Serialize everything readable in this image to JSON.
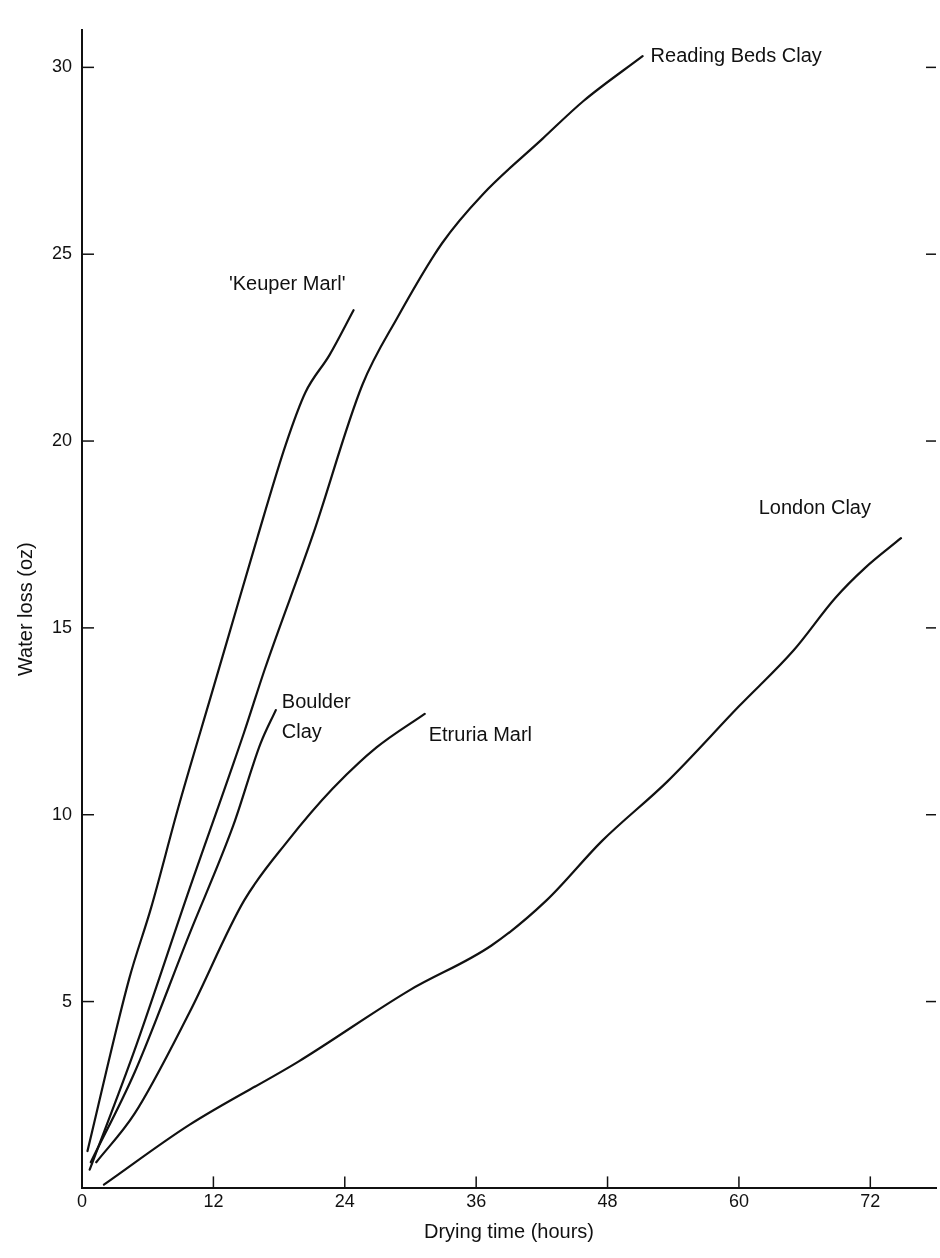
{
  "chart_data": {
    "type": "line",
    "xlabel": "Drying time (hours)",
    "ylabel": "Water loss (oz)",
    "xlim": [
      0,
      78
    ],
    "xticks": [
      0,
      12,
      24,
      36,
      48,
      60,
      72
    ],
    "ylim": [
      0,
      31
    ],
    "yticks": [
      {
        "value": 5,
        "label": "5"
      },
      {
        "value": 10,
        "label": "10"
      },
      {
        "value": 15,
        "label": "15"
      },
      {
        "value": 20,
        "label": "20"
      },
      {
        "value": 25,
        "label": "25"
      },
      {
        "value": 30,
        "label": "30"
      }
    ],
    "tick_labels": "xy",
    "legend": false,
    "grid": false,
    "marker": "none",
    "line_style": "solid",
    "series": [
      {
        "name": "'Keuper Marl'",
        "color": "#111111",
        "x": [
          0.5,
          4.3,
          6.3,
          8.8,
          11.8,
          13.4,
          16.0,
          18.6,
          20.4,
          22.6,
          24.8
        ],
        "values": [
          1.0,
          5.6,
          7.5,
          10.2,
          13.2,
          14.8,
          17.4,
          19.9,
          21.3,
          22.3,
          23.5
        ]
      },
      {
        "name": "Reading Beds Clay",
        "color": "#111111",
        "x": [
          0.7,
          4.8,
          9.8,
          14.8,
          16.7,
          21.1,
          25.6,
          28.8,
          32.9,
          36.6,
          42.1,
          45.8,
          51.2
        ],
        "values": [
          0.5,
          3.7,
          8.0,
          12.2,
          13.9,
          17.5,
          21.5,
          23.3,
          25.3,
          26.6,
          28.1,
          29.1,
          30.3
        ]
      },
      {
        "name": "Boulder Clay",
        "color": "#111111",
        "x": [
          0.8,
          4.8,
          9.8,
          13.8,
          16.3,
          17.7
        ],
        "values": [
          0.7,
          3.1,
          6.8,
          9.7,
          11.9,
          12.8
        ]
      },
      {
        "name": "Etruria Marl",
        "color": "#111111",
        "x": [
          1.3,
          4.8,
          9.8,
          14.8,
          18.8,
          22.9,
          26.9,
          31.3
        ],
        "values": [
          0.7,
          2.0,
          4.7,
          7.7,
          9.3,
          10.7,
          11.8,
          12.7
        ]
      },
      {
        "name": "London Clay",
        "color": "#111111",
        "x": [
          2.0,
          9.8,
          19.8,
          29.9,
          37.4,
          42.4,
          47.5,
          53.5,
          60.0,
          65.0,
          68.8,
          71.5,
          74.8
        ],
        "values": [
          0.1,
          1.7,
          3.4,
          5.3,
          6.5,
          7.7,
          9.3,
          10.9,
          12.9,
          14.4,
          15.8,
          16.6,
          17.4
        ]
      }
    ]
  }
}
